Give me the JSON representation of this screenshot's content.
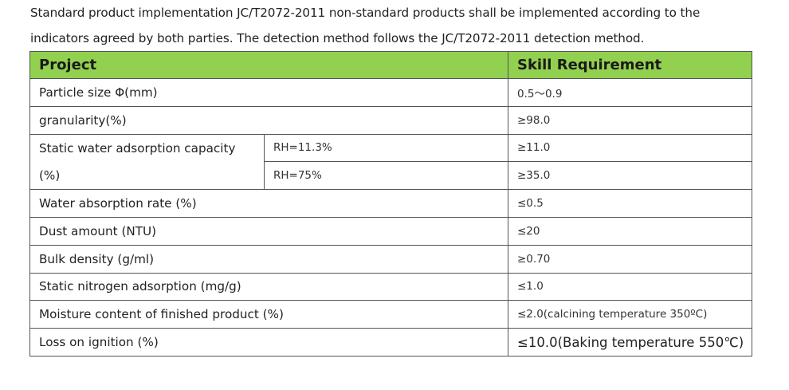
{
  "intro": {
    "line1": "Standard product implementation JC/T2072-2011 non-standard products shall be implemented according to the",
    "line2": "indicators agreed by both parties. The detection method follows the JC/T2072-2011 detection method."
  },
  "table": {
    "header": {
      "project": "Project",
      "requirement": "Skill Requirement"
    },
    "rows": [
      {
        "project": "Particle size Φ(mm)",
        "requirement": "0.5～0.9"
      },
      {
        "project": "granularity(%)",
        "requirement": "≥98.0"
      },
      {
        "project": "Static water adsorption capacity (%)",
        "sub": "RH=11.3%",
        "requirement": "≥11.0"
      },
      {
        "sub": "RH=75%",
        "requirement": "≥35.0"
      },
      {
        "project": "Water absorption rate (%)",
        "requirement": "≤0.5"
      },
      {
        "project": "Dust amount (NTU)",
        "requirement": "≤20"
      },
      {
        "project": "Bulk density (g/ml)",
        "requirement": "≥0.70"
      },
      {
        "project": "Static nitrogen adsorption (mg/g)",
        "requirement": "≤1.0"
      },
      {
        "project": "Moisture content of finished product (%)",
        "requirement": "≤2.0(calcining temperature 350ºC)"
      },
      {
        "project": "Loss on ignition (%)",
        "requirement": "≤10.0(Baking temperature 550℃)"
      }
    ]
  }
}
